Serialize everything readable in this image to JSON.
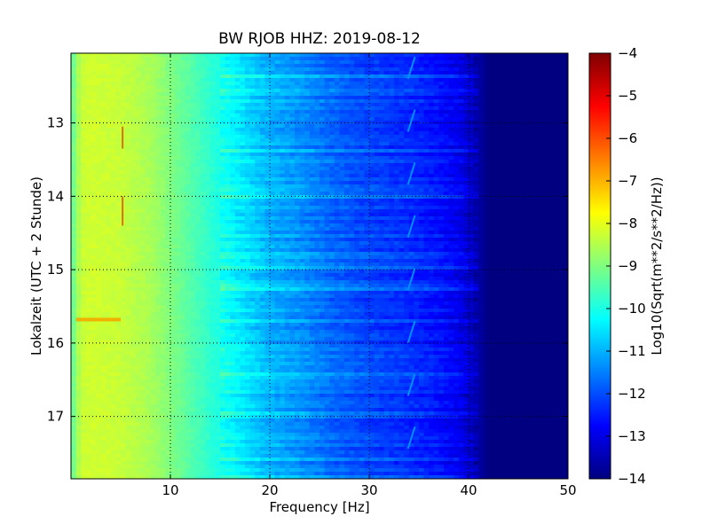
{
  "chart_data": {
    "type": "heatmap",
    "title": "BW RJOB HHZ: 2019-08-12",
    "xlabel": "Frequency [Hz]",
    "ylabel": "Lokalzeit (UTC + 2 Stunde)",
    "xlim": [
      0,
      50
    ],
    "ylim": [
      12.05,
      17.85
    ],
    "y_inverted": true,
    "xticks": [
      10,
      20,
      30,
      40,
      50
    ],
    "yticks": [
      13,
      14,
      15,
      16,
      17
    ],
    "grid": true,
    "colormap": "jet",
    "colorbar": {
      "label": "Log10(Sqrt(m**2/s**2/Hz))",
      "range": [
        -14,
        -4
      ],
      "ticks": [
        -4,
        -5,
        -6,
        -7,
        -8,
        -9,
        -10,
        -11,
        -12,
        -13,
        -14
      ]
    },
    "spectral_profile": {
      "frequency_hz": [
        0,
        1,
        2,
        5,
        8,
        10,
        13,
        16,
        18,
        20,
        23,
        26,
        29,
        32,
        35,
        37,
        39,
        40,
        41,
        42,
        50
      ],
      "log10_amplitude": [
        -9.4,
        -8.3,
        -8.2,
        -8.3,
        -8.6,
        -9.0,
        -9.6,
        -10.2,
        -10.6,
        -11.0,
        -11.3,
        -11.7,
        -12.0,
        -12.2,
        -12.4,
        -12.6,
        -12.9,
        -13.2,
        -13.6,
        -14.0,
        -14.0
      ]
    },
    "features": [
      {
        "label": "tremor_line",
        "freq_hz": 34.2,
        "hours": [
          12.05,
          17.85
        ]
      },
      {
        "label": "spike",
        "freq_hz": 5.1,
        "hours": [
          13.05,
          13.35
        ]
      },
      {
        "label": "spike",
        "freq_hz": 5.1,
        "hours": [
          14.0,
          14.4
        ]
      },
      {
        "label": "band",
        "freq_range_hz": [
          0.5,
          5.0
        ],
        "hour": 15.68
      }
    ]
  }
}
